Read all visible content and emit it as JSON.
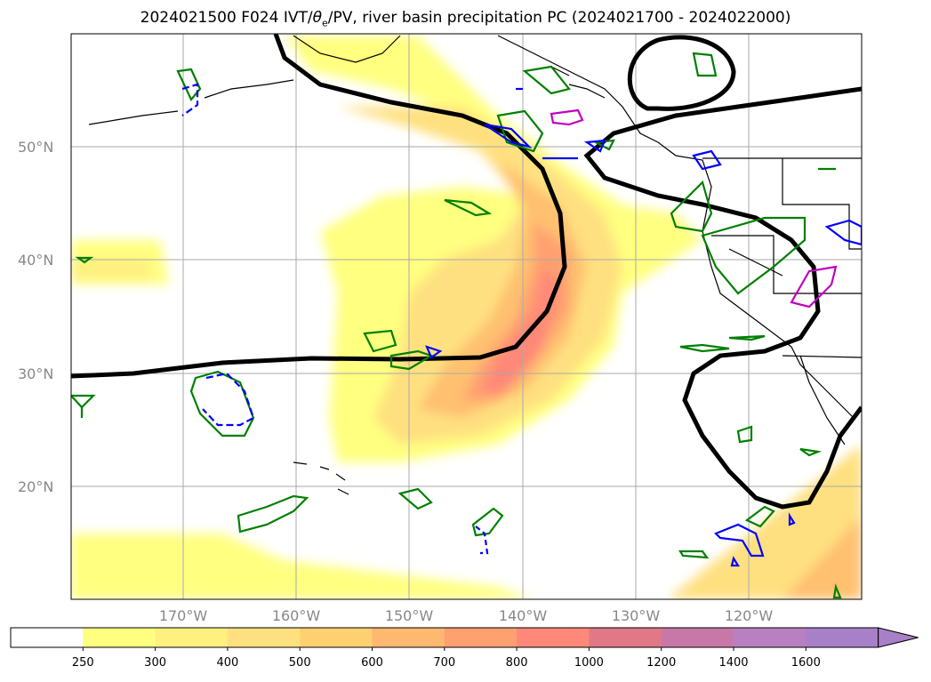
{
  "title": "2024021500 F024 IVT/θe/PV, river basin precipitation PC (2024021700 - 2024022000)",
  "title_parts": {
    "prefix": "2024021500 F024 IVT/",
    "theta": "θ",
    "sub": "e",
    "suffix": "/PV, river basin precipitation PC (2024021700 - 2024022000)"
  },
  "lat_labels": [
    "50°N",
    "40°N",
    "30°N",
    "20°N"
  ],
  "lon_labels": [
    "170°W",
    "160°W",
    "150°W",
    "140°W",
    "130°W",
    "120°W"
  ],
  "colorbar": {
    "ticks": [
      "250",
      "300",
      "400",
      "500",
      "600",
      "700",
      "800",
      "1000",
      "1200",
      "1400",
      "1600"
    ],
    "colors": [
      "#ffffff",
      "#ffff80",
      "#fff080",
      "#ffe080",
      "#ffd070",
      "#ffb870",
      "#ffa070",
      "#ff8878",
      "#e07888",
      "#c878a8",
      "#b880c0",
      "#a880c8"
    ]
  },
  "legend_colors": {
    "ivt_contour": "#000000",
    "precip_pc_positive": "#008000",
    "precip_pc_negative": "#0000ff",
    "precip_pc_high": "#c000c0"
  }
}
